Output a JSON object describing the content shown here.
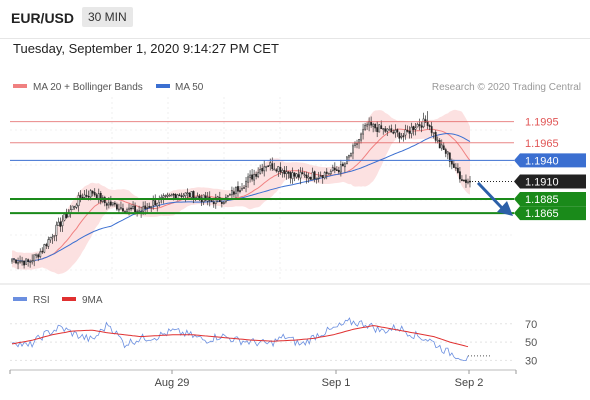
{
  "header": {
    "symbol": "EUR/USD",
    "timeframe": "30 MIN"
  },
  "datetime": "Tuesday, September 1, 2020 9:14:27 PM CET",
  "legend": {
    "ma20_label": "MA 20 + Bollinger Bands",
    "ma50_label": "MA 50"
  },
  "watermark": "Research © 2020 Trading Central",
  "colors": {
    "resistance": "#e05555",
    "pivot": "#3b6fd1",
    "support": "#1a8a1a",
    "last_price": "#222222",
    "arrow": "#2c5fa8",
    "bollinger_fill": "#fbdcdc",
    "ma20": "#f08080",
    "ma50": "#3b6fd1",
    "rsi": "#6b8fe0",
    "rsi_ma": "#e03030"
  },
  "chart_data": [
    {
      "type": "candlestick",
      "ylim": [
        1.177,
        1.203
      ],
      "levels": [
        {
          "name": "resistance-2",
          "value": 1.1995,
          "label": "1.1995"
        },
        {
          "name": "resistance-1",
          "value": 1.1965,
          "label": "1.1965"
        },
        {
          "name": "pivot",
          "value": 1.194,
          "label": "1.1940"
        },
        {
          "name": "last",
          "value": 1.191,
          "label": "1.1910"
        },
        {
          "name": "support-1",
          "value": 1.1885,
          "label": "1.1885"
        },
        {
          "name": "support-2",
          "value": 1.1865,
          "label": "1.1865"
        }
      ],
      "x_labels": [
        "Aug 29",
        "Sep 1",
        "Sep 2"
      ],
      "series_labels": [
        "MA 20 + Bollinger Bands",
        "MA 50"
      ],
      "close_path": [
        [
          0,
          1.18
        ],
        [
          8,
          1.1795
        ],
        [
          14,
          1.181
        ],
        [
          20,
          1.1835
        ],
        [
          27,
          1.1862
        ],
        [
          34,
          1.1888
        ],
        [
          40,
          1.1895
        ],
        [
          46,
          1.188
        ],
        [
          52,
          1.1875
        ],
        [
          58,
          1.187
        ],
        [
          64,
          1.1868
        ],
        [
          70,
          1.188
        ],
        [
          76,
          1.1885
        ],
        [
          82,
          1.1893
        ],
        [
          90,
          1.189
        ],
        [
          98,
          1.1882
        ],
        [
          106,
          1.1885
        ],
        [
          112,
          1.19
        ],
        [
          120,
          1.192
        ],
        [
          126,
          1.1935
        ],
        [
          132,
          1.193
        ],
        [
          140,
          1.1918
        ],
        [
          148,
          1.1918
        ],
        [
          156,
          1.1922
        ],
        [
          164,
          1.193
        ],
        [
          170,
          1.196
        ],
        [
          176,
          1.199
        ],
        [
          182,
          1.1985
        ],
        [
          188,
          1.198
        ],
        [
          194,
          1.1975
        ],
        [
          200,
          1.199
        ],
        [
          206,
          1.1995
        ],
        [
          212,
          1.196
        ],
        [
          216,
          1.1948
        ],
        [
          220,
          1.1925
        ],
        [
          224,
          1.1912
        ],
        [
          227,
          1.191
        ]
      ]
    },
    {
      "type": "line",
      "legend": [
        "RSI",
        "9MA"
      ],
      "ylim": [
        25,
        85
      ],
      "ticks": [
        70,
        50,
        30
      ],
      "rsi": [
        [
          0,
          52
        ],
        [
          8,
          45
        ],
        [
          16,
          58
        ],
        [
          24,
          66
        ],
        [
          32,
          58
        ],
        [
          40,
          52
        ],
        [
          48,
          70
        ],
        [
          56,
          48
        ],
        [
          64,
          54
        ],
        [
          72,
          56
        ],
        [
          80,
          62
        ],
        [
          88,
          58
        ],
        [
          96,
          52
        ],
        [
          104,
          57
        ],
        [
          112,
          52
        ],
        [
          120,
          50
        ],
        [
          128,
          48
        ],
        [
          136,
          56
        ],
        [
          144,
          47
        ],
        [
          152,
          58
        ],
        [
          160,
          64
        ],
        [
          168,
          72
        ],
        [
          176,
          70
        ],
        [
          184,
          62
        ],
        [
          192,
          66
        ],
        [
          200,
          58
        ],
        [
          208,
          52
        ],
        [
          216,
          40
        ],
        [
          222,
          35
        ],
        [
          227,
          31
        ]
      ],
      "rsi_ma": [
        [
          0,
          48
        ],
        [
          10,
          52
        ],
        [
          20,
          58
        ],
        [
          30,
          62
        ],
        [
          40,
          63
        ],
        [
          48,
          60
        ],
        [
          56,
          58
        ],
        [
          64,
          56
        ],
        [
          72,
          57
        ],
        [
          80,
          58
        ],
        [
          90,
          58
        ],
        [
          100,
          56
        ],
        [
          110,
          54
        ],
        [
          120,
          52
        ],
        [
          130,
          51
        ],
        [
          140,
          52
        ],
        [
          150,
          54
        ],
        [
          160,
          58
        ],
        [
          170,
          64
        ],
        [
          180,
          68
        ],
        [
          190,
          64
        ],
        [
          200,
          60
        ],
        [
          210,
          56
        ],
        [
          218,
          50
        ],
        [
          227,
          45
        ]
      ]
    }
  ]
}
